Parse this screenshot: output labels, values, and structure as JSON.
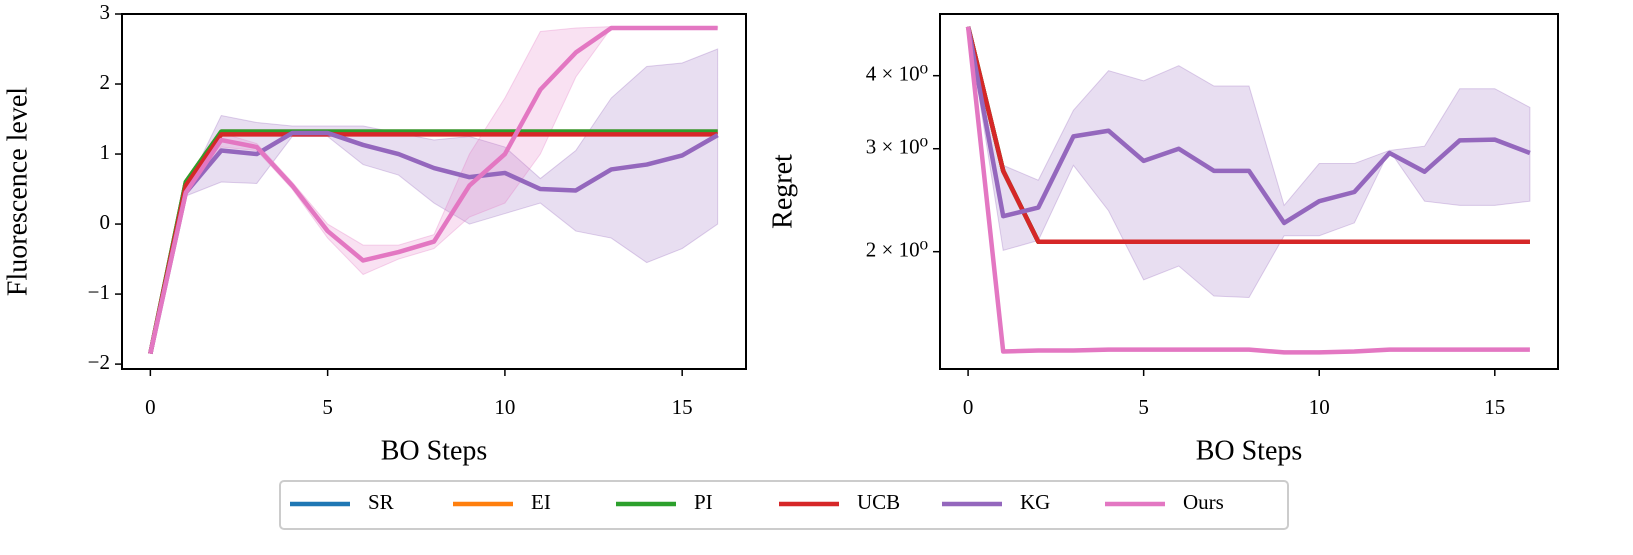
{
  "chart_data": [
    {
      "type": "line",
      "xlabel": "BO Steps",
      "ylabel": "Fluorescence level",
      "x": [
        0,
        1,
        2,
        3,
        4,
        5,
        6,
        7,
        8,
        9,
        10,
        11,
        12,
        13,
        14,
        15,
        16
      ],
      "xlim": [
        -0.8,
        16.8
      ],
      "xticks": [
        0,
        5,
        10,
        15
      ],
      "ylim": [
        -2.07,
        3.0
      ],
      "yticks": [
        {
          "value": -2,
          "label": "−2"
        },
        {
          "value": -1,
          "label": "−1"
        },
        0,
        1,
        2,
        3
      ],
      "series": [
        {
          "name": "SR",
          "color": "#1f77b4",
          "values": [
            -1.85,
            0.6,
            1.32,
            1.32,
            1.32,
            1.32,
            1.32,
            1.32,
            1.32,
            1.32,
            1.32,
            1.32,
            1.32,
            1.32,
            1.32,
            1.32,
            1.32
          ]
        },
        {
          "name": "EI",
          "color": "#ff7f0e",
          "values": [
            -1.85,
            0.6,
            1.32,
            1.32,
            1.32,
            1.32,
            1.32,
            1.32,
            1.32,
            1.32,
            1.32,
            1.32,
            1.32,
            1.32,
            1.32,
            1.32,
            1.32
          ]
        },
        {
          "name": "PI",
          "color": "#2ca02c",
          "values": [
            -1.85,
            0.6,
            1.32,
            1.32,
            1.32,
            1.32,
            1.32,
            1.32,
            1.32,
            1.32,
            1.32,
            1.32,
            1.32,
            1.32,
            1.32,
            1.32,
            1.32
          ]
        },
        {
          "name": "UCB",
          "color": "#d62728",
          "values": [
            -1.85,
            0.55,
            1.28,
            1.28,
            1.28,
            1.28,
            1.28,
            1.28,
            1.28,
            1.28,
            1.28,
            1.28,
            1.28,
            1.28,
            1.28,
            1.28,
            1.28
          ]
        },
        {
          "name": "KG",
          "color": "#9467bd",
          "values": [
            -1.85,
            0.45,
            1.05,
            1.0,
            1.3,
            1.3,
            1.13,
            1.0,
            0.8,
            0.67,
            0.73,
            0.5,
            0.48,
            0.78,
            0.85,
            0.98,
            1.27
          ],
          "lower": [
            -1.85,
            0.4,
            0.6,
            0.58,
            1.25,
            1.25,
            0.85,
            0.7,
            0.3,
            0.0,
            0.15,
            0.3,
            -0.1,
            -0.2,
            -0.55,
            -0.35,
            0.0
          ],
          "upper": [
            -1.85,
            0.5,
            1.55,
            1.45,
            1.4,
            1.4,
            1.4,
            1.3,
            1.2,
            1.25,
            1.1,
            0.65,
            1.05,
            1.8,
            2.25,
            2.3,
            2.5
          ]
        },
        {
          "name": "Ours",
          "color": "#e377c2",
          "values": [
            -1.85,
            0.45,
            1.2,
            1.1,
            0.55,
            -0.1,
            -0.52,
            -0.4,
            -0.25,
            0.55,
            1.0,
            1.92,
            2.45,
            2.8,
            2.8,
            2.8,
            2.8
          ],
          "lower": [
            -1.85,
            0.42,
            1.1,
            1.05,
            0.5,
            -0.2,
            -0.72,
            -0.5,
            -0.35,
            0.1,
            0.3,
            1.0,
            2.1,
            2.8,
            2.8,
            2.8,
            2.8
          ],
          "upper": [
            -1.85,
            0.48,
            1.3,
            1.15,
            0.6,
            0.0,
            -0.3,
            -0.3,
            -0.15,
            1.0,
            1.8,
            2.75,
            2.8,
            2.82,
            2.82,
            2.82,
            2.82
          ]
        }
      ]
    },
    {
      "type": "line",
      "xlabel": "BO Steps",
      "ylabel": "Regret",
      "yscale": "log",
      "x": [
        0,
        1,
        2,
        3,
        4,
        5,
        6,
        7,
        8,
        9,
        10,
        11,
        12,
        13,
        14,
        15,
        16
      ],
      "xlim": [
        -0.8,
        16.8
      ],
      "xticks": [
        0,
        5,
        10,
        15
      ],
      "ylim": [
        1.26,
        5.1
      ],
      "yticks": [
        {
          "value": 2,
          "label": "2 × 10⁰"
        },
        {
          "value": 3,
          "label": "3 × 10⁰"
        },
        {
          "value": 4,
          "label": "4 × 10⁰"
        }
      ],
      "series": [
        {
          "name": "SR",
          "color": "#1f77b4",
          "values": [
            4.85,
            2.75,
            2.08,
            2.08,
            2.08,
            2.08,
            2.08,
            2.08,
            2.08,
            2.08,
            2.08,
            2.08,
            2.08,
            2.08,
            2.08,
            2.08,
            2.08
          ]
        },
        {
          "name": "EI",
          "color": "#ff7f0e",
          "values": [
            4.85,
            2.75,
            2.08,
            2.08,
            2.08,
            2.08,
            2.08,
            2.08,
            2.08,
            2.08,
            2.08,
            2.08,
            2.08,
            2.08,
            2.08,
            2.08,
            2.08
          ]
        },
        {
          "name": "PI",
          "color": "#2ca02c",
          "values": [
            4.85,
            2.75,
            2.08,
            2.08,
            2.08,
            2.08,
            2.08,
            2.08,
            2.08,
            2.08,
            2.08,
            2.08,
            2.08,
            2.08,
            2.08,
            2.08,
            2.08
          ]
        },
        {
          "name": "UCB",
          "color": "#d62728",
          "values": [
            4.85,
            2.75,
            2.08,
            2.08,
            2.08,
            2.08,
            2.08,
            2.08,
            2.08,
            2.08,
            2.08,
            2.08,
            2.08,
            2.08,
            2.08,
            2.08,
            2.08
          ]
        },
        {
          "name": "KG",
          "color": "#9467bd",
          "values": [
            4.85,
            2.3,
            2.38,
            3.15,
            3.22,
            2.86,
            3.0,
            2.75,
            2.75,
            2.24,
            2.44,
            2.53,
            2.95,
            2.74,
            3.1,
            3.11,
            2.95
          ],
          "lower": [
            4.85,
            2.01,
            2.09,
            2.81,
            2.35,
            1.79,
            1.89,
            1.68,
            1.67,
            2.13,
            2.13,
            2.24,
            2.98,
            2.44,
            2.4,
            2.4,
            2.44
          ],
          "upper": [
            4.85,
            2.81,
            2.65,
            3.49,
            4.08,
            3.92,
            4.16,
            3.84,
            3.84,
            2.4,
            2.83,
            2.83,
            2.98,
            3.03,
            3.8,
            3.8,
            3.53
          ]
        },
        {
          "name": "Ours",
          "color": "#e377c2",
          "values": [
            4.85,
            1.35,
            1.355,
            1.355,
            1.36,
            1.36,
            1.36,
            1.36,
            1.36,
            1.345,
            1.345,
            1.35,
            1.36,
            1.36,
            1.36,
            1.36,
            1.36
          ]
        }
      ]
    }
  ]
}
